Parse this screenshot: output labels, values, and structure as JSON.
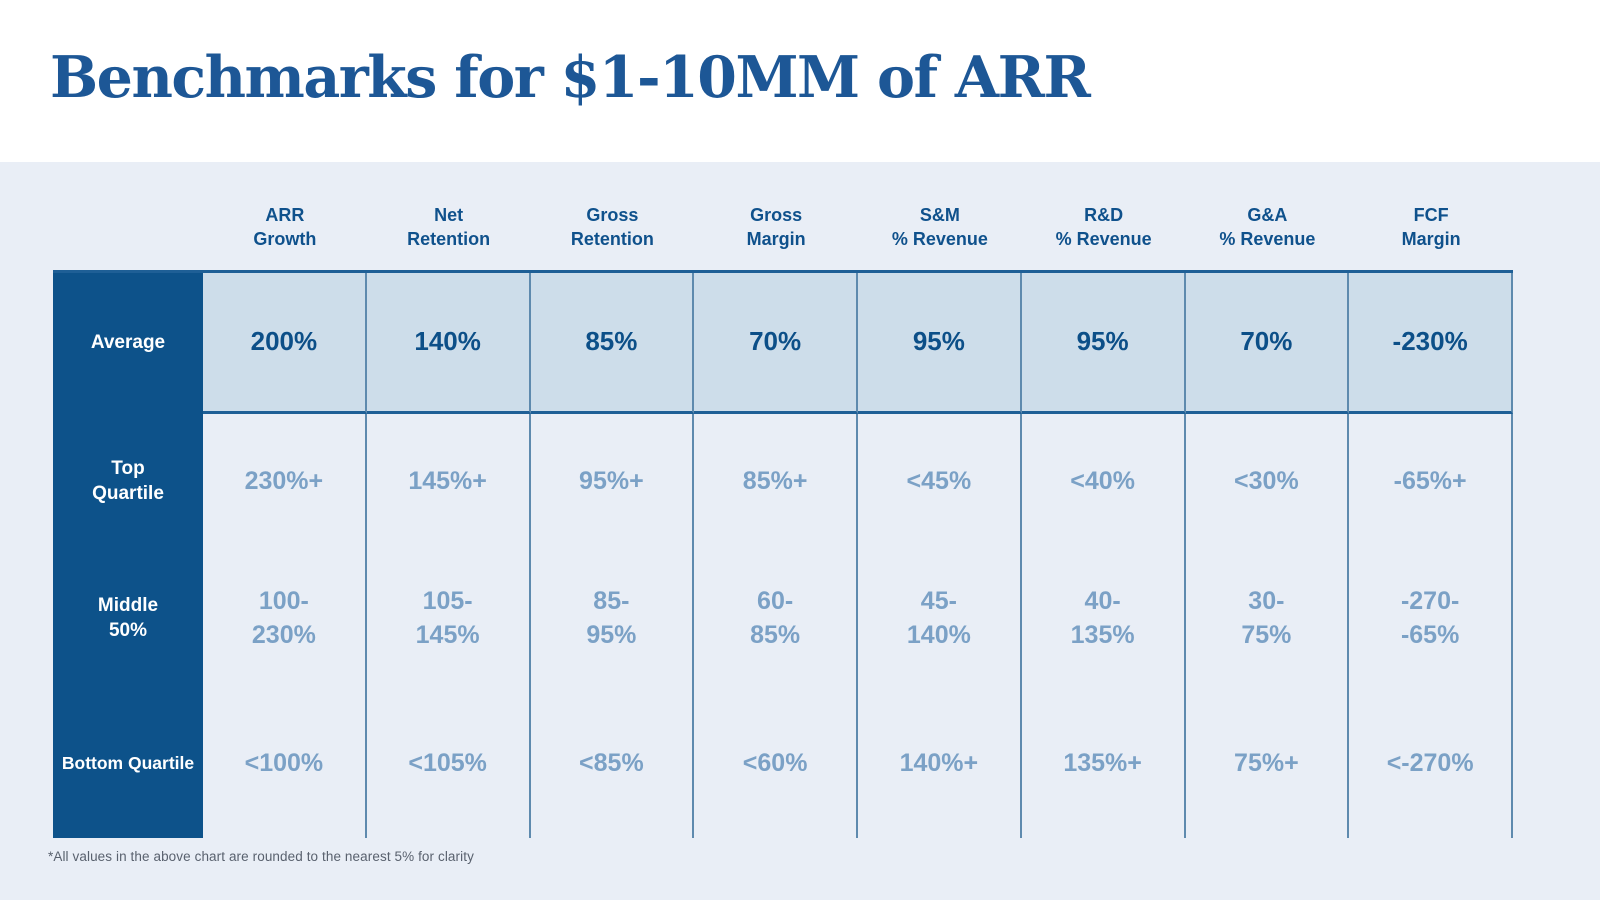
{
  "header": {
    "title": "Benchmarks for $1-10MM of ARR"
  },
  "footnote": "*All values in the above chart are rounded to the nearest 5% for clarity",
  "colors": {
    "title_blue": "#1d5796",
    "navy_label_bg": "#0d528a",
    "average_cell_bg": "#cdddea",
    "average_value_text": "#0c4f88",
    "muted_value_text": "#7ba1c6",
    "separator_line": "#5e8aae",
    "dark_border_line": "#1e5f96",
    "content_bg": "#e9eef6",
    "header_text": "#0f518c"
  },
  "chart_data": {
    "type": "table",
    "title": "Benchmarks for $1-10MM of ARR",
    "columns": [
      "ARR\nGrowth",
      "Net\nRetention",
      "Gross\nRetention",
      "Gross\nMargin",
      "S&M\n% Revenue",
      "R&D\n% Revenue",
      "G&A\n% Revenue",
      "FCF\nMargin"
    ],
    "rows": [
      {
        "label": "Average",
        "values": [
          "200%",
          "140%",
          "85%",
          "70%",
          "95%",
          "95%",
          "70%",
          "-230%"
        ]
      },
      {
        "label": "Top\nQuartile",
        "values": [
          "230%+",
          "145%+",
          "95%+",
          "85%+",
          "<45%",
          "<40%",
          "<30%",
          "-65%+"
        ]
      },
      {
        "label": "Middle\n50%",
        "values": [
          "100-\n230%",
          "105-\n145%",
          "85-\n95%",
          "60-\n85%",
          "45-\n140%",
          "40-\n135%",
          "30-\n75%",
          "-270-\n-65%"
        ]
      },
      {
        "label": "Bottom Quartile",
        "values": [
          "<100%",
          "<105%",
          "<85%",
          "<60%",
          "140%+",
          "135%+",
          "75%+",
          "<-270%"
        ]
      }
    ]
  }
}
